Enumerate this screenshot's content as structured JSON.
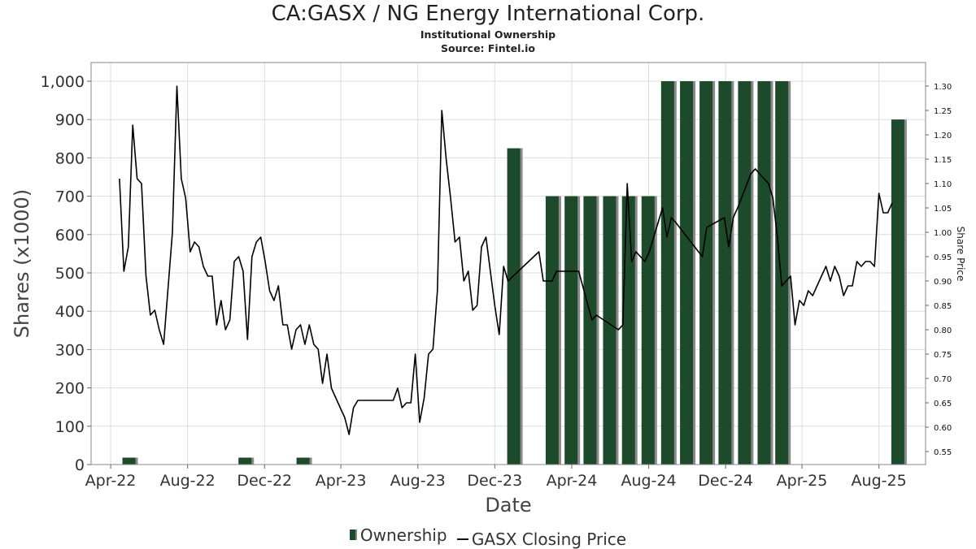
{
  "header": {
    "title": "CA:GASX / NG Energy International Corp.",
    "subtitle": "Institutional Ownership",
    "source": "Source: Fintel.io"
  },
  "legend": {
    "ownership": "Ownership",
    "price": "GASX Closing Price"
  },
  "colors": {
    "bar": "#1e4a2c",
    "bar_shadow": "#8a8a8a",
    "line": "#000000",
    "grid": "#dddddd"
  },
  "chart_data": {
    "type": "bar",
    "title": "CA:GASX / NG Energy International Corp.",
    "subtitle": "Institutional Ownership",
    "xlabel": "Date",
    "ylabel": "Shares (x1000)",
    "y2label": "Share Price",
    "ylim": [
      0,
      1000
    ],
    "y2lim": [
      0.52,
      1.34
    ],
    "yticks": [
      "0",
      "100",
      "200",
      "300",
      "400",
      "500",
      "600",
      "700",
      "800",
      "900",
      "1,000"
    ],
    "y2ticks": [
      "0.55",
      "0.60",
      "0.65",
      "0.70",
      "0.75",
      "0.80",
      "0.85",
      "0.90",
      "0.95",
      "1.00",
      "1.05",
      "1.10",
      "1.15",
      "1.20",
      "1.25",
      "1.30"
    ],
    "xticks": [
      {
        "date": "2022-04-01",
        "label": "Apr-22"
      },
      {
        "date": "2022-08-01",
        "label": "Aug-22"
      },
      {
        "date": "2022-12-01",
        "label": "Dec-22"
      },
      {
        "date": "2023-04-01",
        "label": "Apr-23"
      },
      {
        "date": "2023-08-01",
        "label": "Aug-23"
      },
      {
        "date": "2023-12-01",
        "label": "Dec-23"
      },
      {
        "date": "2024-04-01",
        "label": "Apr-24"
      },
      {
        "date": "2024-08-01",
        "label": "Aug-24"
      },
      {
        "date": "2024-12-01",
        "label": "Dec-24"
      },
      {
        "date": "2025-04-01",
        "label": "Apr-25"
      },
      {
        "date": "2025-08-01",
        "label": "Aug-25"
      }
    ],
    "xrange": [
      "2022-03-01",
      "2025-10-14"
    ],
    "grid": true,
    "legend_position": "bottom",
    "series": [
      {
        "name": "Ownership",
        "type": "bar",
        "points": [
          {
            "x": "2022-04-30",
            "y": 18
          },
          {
            "x": "2022-10-31",
            "y": 18
          },
          {
            "x": "2023-01-31",
            "y": 18
          },
          {
            "x": "2023-12-31",
            "y": 825
          },
          {
            "x": "2024-03-01",
            "y": 700
          },
          {
            "x": "2024-03-31",
            "y": 700
          },
          {
            "x": "2024-04-30",
            "y": 700
          },
          {
            "x": "2024-05-31",
            "y": 700
          },
          {
            "x": "2024-06-30",
            "y": 700
          },
          {
            "x": "2024-07-31",
            "y": 700
          },
          {
            "x": "2024-08-31",
            "y": 1000
          },
          {
            "x": "2024-09-30",
            "y": 1000
          },
          {
            "x": "2024-10-31",
            "y": 1000
          },
          {
            "x": "2024-11-30",
            "y": 1000
          },
          {
            "x": "2024-12-31",
            "y": 1000
          },
          {
            "x": "2025-01-31",
            "y": 1000
          },
          {
            "x": "2025-02-28",
            "y": 1000
          },
          {
            "x": "2025-08-31",
            "y": 900
          }
        ]
      },
      {
        "name": "GASX Closing Price",
        "type": "line",
        "points": [
          {
            "x": "2022-04-15",
            "y": 1.11
          },
          {
            "x": "2022-04-22",
            "y": 0.92
          },
          {
            "x": "2022-04-29",
            "y": 0.97
          },
          {
            "x": "2022-05-06",
            "y": 1.22
          },
          {
            "x": "2022-05-13",
            "y": 1.11
          },
          {
            "x": "2022-05-20",
            "y": 1.1
          },
          {
            "x": "2022-05-27",
            "y": 0.91
          },
          {
            "x": "2022-06-03",
            "y": 0.83
          },
          {
            "x": "2022-06-10",
            "y": 0.84
          },
          {
            "x": "2022-06-17",
            "y": 0.8
          },
          {
            "x": "2022-06-24",
            "y": 0.77
          },
          {
            "x": "2022-07-08",
            "y": 1.0
          },
          {
            "x": "2022-07-15",
            "y": 1.3
          },
          {
            "x": "2022-07-22",
            "y": 1.11
          },
          {
            "x": "2022-07-29",
            "y": 1.07
          },
          {
            "x": "2022-08-05",
            "y": 0.96
          },
          {
            "x": "2022-08-12",
            "y": 0.98
          },
          {
            "x": "2022-08-19",
            "y": 0.97
          },
          {
            "x": "2022-08-26",
            "y": 0.93
          },
          {
            "x": "2022-09-02",
            "y": 0.91
          },
          {
            "x": "2022-09-09",
            "y": 0.91
          },
          {
            "x": "2022-09-16",
            "y": 0.81
          },
          {
            "x": "2022-09-23",
            "y": 0.86
          },
          {
            "x": "2022-09-30",
            "y": 0.8
          },
          {
            "x": "2022-10-07",
            "y": 0.82
          },
          {
            "x": "2022-10-14",
            "y": 0.94
          },
          {
            "x": "2022-10-21",
            "y": 0.95
          },
          {
            "x": "2022-10-28",
            "y": 0.92
          },
          {
            "x": "2022-11-04",
            "y": 0.78
          },
          {
            "x": "2022-11-11",
            "y": 0.95
          },
          {
            "x": "2022-11-18",
            "y": 0.98
          },
          {
            "x": "2022-11-25",
            "y": 0.99
          },
          {
            "x": "2022-12-02",
            "y": 0.94
          },
          {
            "x": "2022-12-09",
            "y": 0.88
          },
          {
            "x": "2022-12-16",
            "y": 0.86
          },
          {
            "x": "2022-12-23",
            "y": 0.89
          },
          {
            "x": "2022-12-30",
            "y": 0.81
          },
          {
            "x": "2023-01-06",
            "y": 0.81
          },
          {
            "x": "2023-01-13",
            "y": 0.76
          },
          {
            "x": "2023-01-20",
            "y": 0.8
          },
          {
            "x": "2023-01-27",
            "y": 0.81
          },
          {
            "x": "2023-02-03",
            "y": 0.77
          },
          {
            "x": "2023-02-10",
            "y": 0.81
          },
          {
            "x": "2023-02-17",
            "y": 0.77
          },
          {
            "x": "2023-02-24",
            "y": 0.76
          },
          {
            "x": "2023-03-03",
            "y": 0.69
          },
          {
            "x": "2023-03-10",
            "y": 0.75
          },
          {
            "x": "2023-03-17",
            "y": 0.68
          },
          {
            "x": "2023-03-24",
            "y": 0.66
          },
          {
            "x": "2023-03-31",
            "y": 0.64
          },
          {
            "x": "2023-04-07",
            "y": 0.62
          },
          {
            "x": "2023-04-14",
            "y": 0.585
          },
          {
            "x": "2023-04-21",
            "y": 0.64
          },
          {
            "x": "2023-04-28",
            "y": 0.655
          },
          {
            "x": "2023-05-05",
            "y": 0.655
          },
          {
            "x": "2023-05-12",
            "y": 0.655
          },
          {
            "x": "2023-05-19",
            "y": 0.655
          },
          {
            "x": "2023-05-26",
            "y": 0.655
          },
          {
            "x": "2023-06-02",
            "y": 0.655
          },
          {
            "x": "2023-06-09",
            "y": 0.655
          },
          {
            "x": "2023-06-16",
            "y": 0.655
          },
          {
            "x": "2023-06-23",
            "y": 0.655
          },
          {
            "x": "2023-06-30",
            "y": 0.68
          },
          {
            "x": "2023-07-07",
            "y": 0.64
          },
          {
            "x": "2023-07-14",
            "y": 0.65
          },
          {
            "x": "2023-07-21",
            "y": 0.65
          },
          {
            "x": "2023-07-28",
            "y": 0.75
          },
          {
            "x": "2023-08-04",
            "y": 0.61
          },
          {
            "x": "2023-08-11",
            "y": 0.66
          },
          {
            "x": "2023-08-18",
            "y": 0.75
          },
          {
            "x": "2023-08-25",
            "y": 0.76
          },
          {
            "x": "2023-09-01",
            "y": 0.88
          },
          {
            "x": "2023-09-08",
            "y": 1.25
          },
          {
            "x": "2023-09-15",
            "y": 1.15
          },
          {
            "x": "2023-09-22",
            "y": 1.07
          },
          {
            "x": "2023-09-29",
            "y": 0.98
          },
          {
            "x": "2023-10-06",
            "y": 0.99
          },
          {
            "x": "2023-10-13",
            "y": 0.9
          },
          {
            "x": "2023-10-20",
            "y": 0.92
          },
          {
            "x": "2023-10-27",
            "y": 0.84
          },
          {
            "x": "2023-11-03",
            "y": 0.85
          },
          {
            "x": "2023-11-10",
            "y": 0.97
          },
          {
            "x": "2023-11-17",
            "y": 0.99
          },
          {
            "x": "2023-11-24",
            "y": 0.92
          },
          {
            "x": "2023-12-01",
            "y": 0.85
          },
          {
            "x": "2023-12-08",
            "y": 0.79
          },
          {
            "x": "2023-12-15",
            "y": 0.93
          },
          {
            "x": "2023-12-22",
            "y": 0.9
          },
          {
            "x": "2024-02-09",
            "y": 0.96
          },
          {
            "x": "2024-02-16",
            "y": 0.9
          },
          {
            "x": "2024-02-23",
            "y": 0.9
          },
          {
            "x": "2024-03-01",
            "y": 0.9
          },
          {
            "x": "2024-03-08",
            "y": 0.92
          },
          {
            "x": "2024-04-12",
            "y": 0.92
          },
          {
            "x": "2024-05-03",
            "y": 0.82
          },
          {
            "x": "2024-05-10",
            "y": 0.83
          },
          {
            "x": "2024-06-14",
            "y": 0.8
          },
          {
            "x": "2024-06-21",
            "y": 0.81
          },
          {
            "x": "2024-06-28",
            "y": 1.1
          },
          {
            "x": "2024-07-05",
            "y": 0.94
          },
          {
            "x": "2024-07-12",
            "y": 0.96
          },
          {
            "x": "2024-07-26",
            "y": 0.94
          },
          {
            "x": "2024-08-02",
            "y": 0.96
          },
          {
            "x": "2024-08-23",
            "y": 1.05
          },
          {
            "x": "2024-08-30",
            "y": 0.99
          },
          {
            "x": "2024-09-06",
            "y": 1.03
          },
          {
            "x": "2024-09-13",
            "y": 1.02
          },
          {
            "x": "2024-10-25",
            "y": 0.95
          },
          {
            "x": "2024-11-01",
            "y": 1.01
          },
          {
            "x": "2024-11-29",
            "y": 1.03
          },
          {
            "x": "2024-12-06",
            "y": 0.97
          },
          {
            "x": "2024-12-13",
            "y": 1.03
          },
          {
            "x": "2024-12-20",
            "y": 1.05
          },
          {
            "x": "2025-01-10",
            "y": 1.12
          },
          {
            "x": "2025-01-17",
            "y": 1.13
          },
          {
            "x": "2025-02-07",
            "y": 1.1
          },
          {
            "x": "2025-02-14",
            "y": 1.07
          },
          {
            "x": "2025-02-21",
            "y": 0.99
          },
          {
            "x": "2025-02-28",
            "y": 0.89
          },
          {
            "x": "2025-03-07",
            "y": 0.9
          },
          {
            "x": "2025-03-14",
            "y": 0.91
          },
          {
            "x": "2025-03-21",
            "y": 0.81
          },
          {
            "x": "2025-03-28",
            "y": 0.86
          },
          {
            "x": "2025-04-04",
            "y": 0.85
          },
          {
            "x": "2025-04-11",
            "y": 0.88
          },
          {
            "x": "2025-04-18",
            "y": 0.87
          },
          {
            "x": "2025-04-25",
            "y": 0.89
          },
          {
            "x": "2025-05-02",
            "y": 0.91
          },
          {
            "x": "2025-05-09",
            "y": 0.93
          },
          {
            "x": "2025-05-16",
            "y": 0.9
          },
          {
            "x": "2025-05-23",
            "y": 0.93
          },
          {
            "x": "2025-05-30",
            "y": 0.91
          },
          {
            "x": "2025-06-06",
            "y": 0.87
          },
          {
            "x": "2025-06-13",
            "y": 0.89
          },
          {
            "x": "2025-06-20",
            "y": 0.89
          },
          {
            "x": "2025-06-27",
            "y": 0.94
          },
          {
            "x": "2025-07-04",
            "y": 0.93
          },
          {
            "x": "2025-07-11",
            "y": 0.94
          },
          {
            "x": "2025-07-18",
            "y": 0.94
          },
          {
            "x": "2025-07-25",
            "y": 0.93
          },
          {
            "x": "2025-08-01",
            "y": 1.08
          },
          {
            "x": "2025-08-08",
            "y": 1.04
          },
          {
            "x": "2025-08-15",
            "y": 1.04
          },
          {
            "x": "2025-08-22",
            "y": 1.06
          }
        ]
      }
    ]
  }
}
